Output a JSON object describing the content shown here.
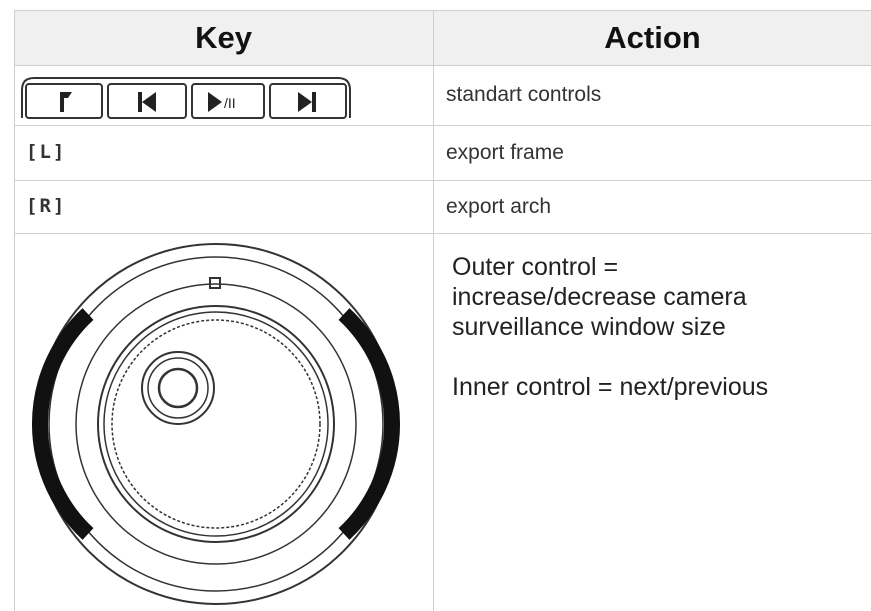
{
  "table": {
    "header": [
      "Key",
      "Action"
    ],
    "rows": [
      {
        "action": "standart controls"
      },
      {
        "key": "[L]",
        "action": "export frame"
      },
      {
        "key": "[R]",
        "action": "export arch"
      },
      {
        "paragraphs": [
          [
            "Outer control =",
            "increase/decrease camera",
            "surveillance window size"
          ],
          [
            "Inner control = next/previous"
          ]
        ]
      }
    ]
  }
}
